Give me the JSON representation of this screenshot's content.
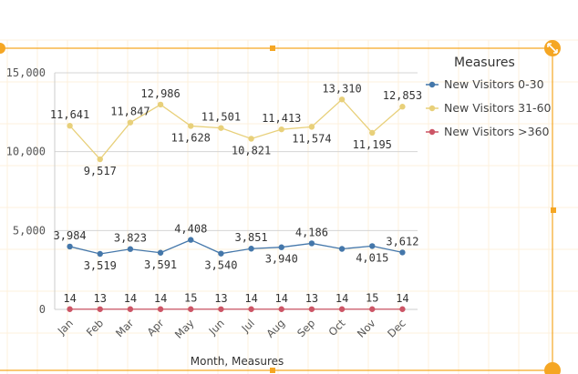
{
  "chart_data": {
    "type": "line",
    "title": "",
    "xlabel": "Month, Measures",
    "ylabel": "",
    "categories": [
      "Jan",
      "Feb",
      "Mar",
      "Apr",
      "May",
      "Jun",
      "Jul",
      "Aug",
      "Sep",
      "Oct",
      "Nov",
      "Dec"
    ],
    "ylim": [
      0,
      15000
    ],
    "yticks": [
      0,
      5000,
      10000,
      15000
    ],
    "ytick_labels": [
      "0",
      "5,000",
      "10,000",
      "15,000"
    ],
    "grid": true,
    "legend": {
      "title": "Measures",
      "position": "right"
    },
    "series": [
      {
        "name": "New Visitors 0-30",
        "color": "#4477aa",
        "values": [
          3984,
          3519,
          3823,
          3591,
          4408,
          3540,
          3851,
          3940,
          4186,
          3836,
          4015,
          3612
        ],
        "labels": [
          "3,984",
          "3,519",
          "3,823",
          "3,591",
          "4,408",
          "3,540",
          "3,851",
          "3,940",
          "4,186",
          "",
          "4,015",
          "3,612"
        ]
      },
      {
        "name": "New Visitors 31-60",
        "color": "#e8d07a",
        "values": [
          11641,
          9517,
          11847,
          12986,
          11628,
          11501,
          10821,
          11413,
          11574,
          13310,
          11195,
          12853
        ],
        "labels": [
          "11,641",
          "9,517",
          "11,847",
          "12,986",
          "11,628",
          "11,501",
          "10,821",
          "11,413",
          "11,574",
          "13,310",
          "11,195",
          "12,853"
        ]
      },
      {
        "name": "New Visitors >360",
        "color": "#cc5566",
        "values": [
          14,
          13,
          14,
          14,
          15,
          13,
          14,
          14,
          13,
          14,
          15,
          14
        ],
        "labels": [
          "14",
          "13",
          "14",
          "14",
          "15",
          "13",
          "14",
          "14",
          "13",
          "14",
          "15",
          "14"
        ]
      }
    ]
  },
  "ui": {
    "frame_color": "#f5a623",
    "handle_icons": [
      "resize-handle-icon",
      "resize-handle-icon"
    ]
  }
}
